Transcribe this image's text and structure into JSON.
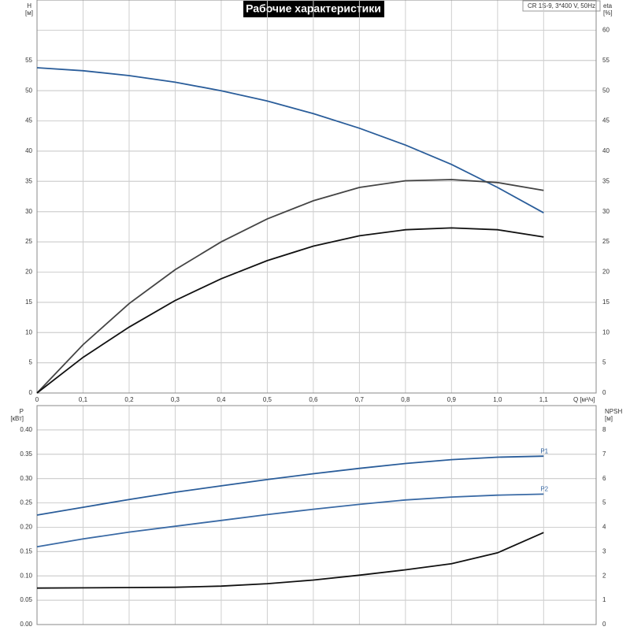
{
  "chart_data": [
    {
      "type": "line",
      "title": "Рабочие характеристики",
      "subtitle": "CR 1S-9, 3*400 V, 50Hz",
      "x_label": "Q [м³/ч]",
      "y_label": "H",
      "y_unit": "[м]",
      "y2_label": "eta",
      "y2_unit": "[%]",
      "x": [
        0,
        0.1,
        0.2,
        0.3,
        0.4,
        0.5,
        0.6,
        0.7,
        0.8,
        0.9,
        1.0,
        1.1
      ],
      "xlim": [
        0,
        1.214
      ],
      "xticks": [
        0,
        {
          "value": 0.1,
          "label": "0,1"
        },
        {
          "value": 0.2,
          "label": "0,2"
        },
        {
          "value": 0.3,
          "label": "0,3"
        },
        {
          "value": 0.4,
          "label": "0,4"
        },
        {
          "value": 0.5,
          "label": "0,5"
        },
        {
          "value": 0.6,
          "label": "0,6"
        },
        {
          "value": 0.7,
          "label": "0,7"
        },
        {
          "value": 0.8,
          "label": "0,8"
        },
        {
          "value": 0.9,
          "label": "0,9"
        },
        {
          "value": 1.0,
          "label": "1,0"
        },
        {
          "value": 1.1,
          "label": "1,1"
        }
      ],
      "ylim": [
        0,
        65
      ],
      "yticks": [
        0,
        5,
        10,
        15,
        20,
        25,
        30,
        35,
        40,
        45,
        50,
        55
      ],
      "y2lim": [
        0,
        65
      ],
      "y2ticks": [
        0,
        5,
        10,
        15,
        20,
        25,
        30,
        35,
        40,
        45,
        50,
        55,
        60
      ],
      "grid": true,
      "series": [
        {
          "color": "#2a5d9a",
          "values": [
            53.8,
            53.3,
            52.5,
            51.4,
            50.0,
            48.3,
            46.2,
            43.8,
            41.0,
            37.8,
            34.0,
            29.8
          ]
        },
        {
          "color": "#444444",
          "axis": "y2",
          "values": [
            0,
            8.0,
            14.8,
            20.4,
            25.0,
            28.8,
            31.8,
            34.0,
            35.1,
            35.3,
            34.8,
            33.5
          ]
        },
        {
          "color": "#111111",
          "axis": "y2",
          "values": [
            0,
            5.9,
            10.9,
            15.3,
            18.9,
            21.9,
            24.3,
            26.0,
            27.0,
            27.3,
            27.0,
            25.8
          ]
        }
      ]
    },
    {
      "type": "line",
      "y_label": "P",
      "y_unit": "[кВт]",
      "y2_label": "NPSH",
      "y2_unit": "[м]",
      "x": [
        0,
        0.1,
        0.2,
        0.3,
        0.4,
        0.5,
        0.6,
        0.7,
        0.8,
        0.9,
        1.0,
        1.1
      ],
      "xlim": [
        0,
        1.214
      ],
      "xticks": [
        0,
        0.1,
        0.2,
        0.3,
        0.4,
        0.5,
        0.6,
        0.7,
        0.8,
        0.9,
        1.0,
        1.1
      ],
      "ylim": [
        0,
        0.45
      ],
      "yticks": [
        {
          "value": 0,
          "label": "0.00"
        },
        {
          "value": 0.05,
          "label": "0.05"
        },
        {
          "value": 0.1,
          "label": "0.10"
        },
        {
          "value": 0.15,
          "label": "0.15"
        },
        {
          "value": 0.2,
          "label": "0.20"
        },
        {
          "value": 0.25,
          "label": "0.25"
        },
        {
          "value": 0.3,
          "label": "0.30"
        },
        {
          "value": 0.35,
          "label": "0.35"
        },
        {
          "value": 0.4,
          "label": "0.40"
        }
      ],
      "y2lim": [
        0,
        9
      ],
      "y2ticks": [
        0,
        1,
        2,
        3,
        4,
        5,
        6,
        7,
        8
      ],
      "grid": true,
      "series": [
        {
          "name": "P1",
          "color": "#2a5d9a",
          "values": [
            0.225,
            0.241,
            0.257,
            0.272,
            0.285,
            0.298,
            0.31,
            0.321,
            0.331,
            0.339,
            0.344,
            0.346
          ]
        },
        {
          "name": "P2",
          "color": "#3a6aa5",
          "values": [
            0.16,
            0.176,
            0.19,
            0.202,
            0.214,
            0.226,
            0.237,
            0.247,
            0.256,
            0.262,
            0.266,
            0.268
          ]
        },
        {
          "color": "#111111",
          "axis": "y2",
          "values": [
            1.5,
            1.51,
            1.52,
            1.53,
            1.58,
            1.68,
            1.83,
            2.03,
            2.25,
            2.5,
            2.95,
            3.78
          ]
        }
      ]
    }
  ]
}
